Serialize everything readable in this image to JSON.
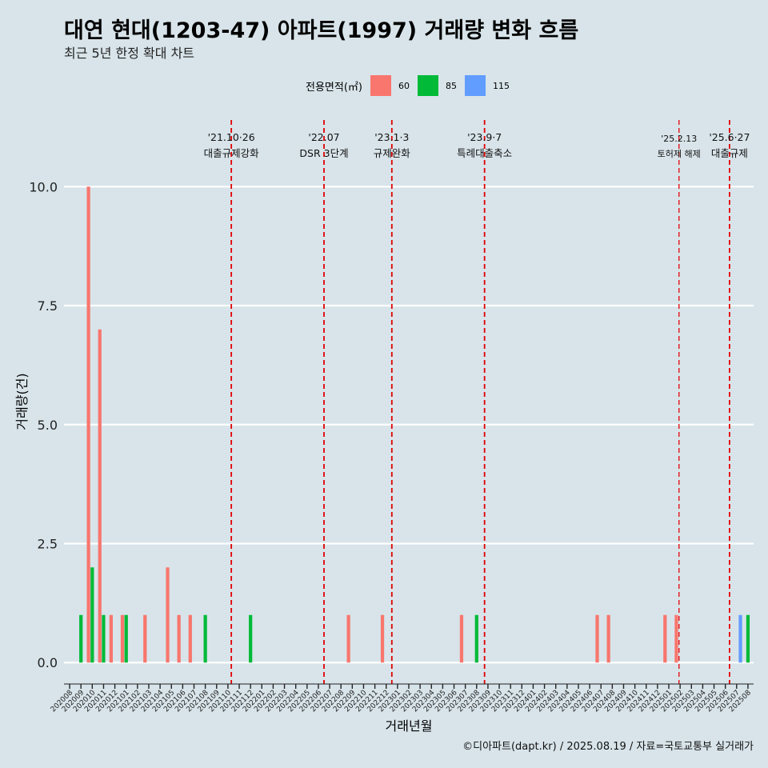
{
  "title": "대연 현대(1203-47) 아파트(1997) 거래량 변화 흐름",
  "subtitle": "최근 5년 한정 확대 차트",
  "caption": "©디아파트(dapt.kr) / 2025.08.19 / 자료=국토교통부 실거래가",
  "legend": {
    "title": "전용면적(㎡)",
    "items": [
      {
        "label": "60",
        "color": "#F8766D"
      },
      {
        "label": "85",
        "color": "#00BA38"
      },
      {
        "label": "115",
        "color": "#619CFF"
      }
    ]
  },
  "chart_data": {
    "type": "bar",
    "xlabel": "거래년월",
    "ylabel": "거래량(건)",
    "ylim": [
      -0.45,
      11.4
    ],
    "yticks": [
      0.0,
      2.5,
      5.0,
      7.5,
      10.0
    ],
    "ytick_labels": [
      "0.0",
      "2.5",
      "5.0",
      "7.5",
      "10.0"
    ],
    "grid": "horizontal",
    "legend_position": "top",
    "categories": [
      "202008",
      "202009",
      "202010",
      "202011",
      "202012",
      "202101",
      "202102",
      "202103",
      "202104",
      "202105",
      "202106",
      "202107",
      "202108",
      "202109",
      "202110",
      "202111",
      "202112",
      "202201",
      "202202",
      "202203",
      "202204",
      "202205",
      "202206",
      "202207",
      "202208",
      "202209",
      "202210",
      "202211",
      "202212",
      "202301",
      "202302",
      "202303",
      "202304",
      "202305",
      "202306",
      "202307",
      "202308",
      "202309",
      "202310",
      "202311",
      "202312",
      "202401",
      "202402",
      "202403",
      "202404",
      "202405",
      "202406",
      "202407",
      "202408",
      "202409",
      "202410",
      "202411",
      "202412",
      "202501",
      "202502",
      "202503",
      "202504",
      "202505",
      "202506",
      "202507",
      "202508"
    ],
    "series": [
      {
        "name": "60",
        "color": "#F8766D",
        "values": [
          0,
          0,
          10,
          7,
          1,
          1,
          0,
          1,
          0,
          2,
          1,
          1,
          0,
          0,
          0,
          0,
          0,
          0,
          0,
          0,
          0,
          0,
          0,
          0,
          0,
          1,
          0,
          0,
          1,
          0,
          0,
          0,
          0,
          0,
          0,
          1,
          0,
          0,
          0,
          0,
          0,
          0,
          0,
          0,
          0,
          0,
          0,
          1,
          1,
          0,
          0,
          0,
          0,
          1,
          1,
          0,
          0,
          0,
          0,
          0,
          0
        ]
      },
      {
        "name": "85",
        "color": "#00BA38",
        "values": [
          0,
          1,
          2,
          1,
          0,
          1,
          0,
          0,
          0,
          0,
          0,
          0,
          1,
          0,
          0,
          0,
          1,
          0,
          0,
          0,
          0,
          0,
          0,
          0,
          0,
          0,
          0,
          0,
          0,
          0,
          0,
          0,
          0,
          0,
          0,
          0,
          1,
          0,
          0,
          0,
          0,
          0,
          0,
          0,
          0,
          0,
          0,
          0,
          0,
          0,
          0,
          0,
          0,
          0,
          0,
          0,
          0,
          0,
          0,
          0,
          1
        ]
      },
      {
        "name": "115",
        "color": "#619CFF",
        "values": [
          0,
          0,
          0,
          0,
          0,
          0,
          0,
          0,
          0,
          0,
          0,
          0,
          0,
          0,
          0,
          0,
          0,
          0,
          0,
          0,
          0,
          0,
          0,
          0,
          0,
          0,
          0,
          0,
          0,
          0,
          0,
          0,
          0,
          0,
          0,
          0,
          0,
          0,
          0,
          0,
          0,
          0,
          0,
          0,
          0,
          0,
          0,
          0,
          0,
          0,
          0,
          0,
          0,
          0,
          0,
          0,
          0,
          0,
          0,
          1,
          0
        ]
      }
    ],
    "annotations": [
      {
        "date": "'21.10·26",
        "text": "대출규제강화",
        "at": "202110",
        "offset": 0.8
      },
      {
        "date": "'22.07",
        "text": "DSR 3단계",
        "at": "202207",
        "offset": 0.0
      },
      {
        "date": "'23.1·3",
        "text": "규제완화",
        "at": "202301",
        "offset": 0.0
      },
      {
        "date": "'23.9·7",
        "text": "특례대출축소",
        "at": "202309",
        "offset": 0.2
      },
      {
        "date": "'25.2.13",
        "text": "토허제 해제",
        "at": "202502",
        "offset": 0.4,
        "small": true
      },
      {
        "date": "'25.6·27",
        "text": "대출규제",
        "at": "202506",
        "offset": 0.87
      }
    ],
    "vline_color": "#e00000"
  }
}
